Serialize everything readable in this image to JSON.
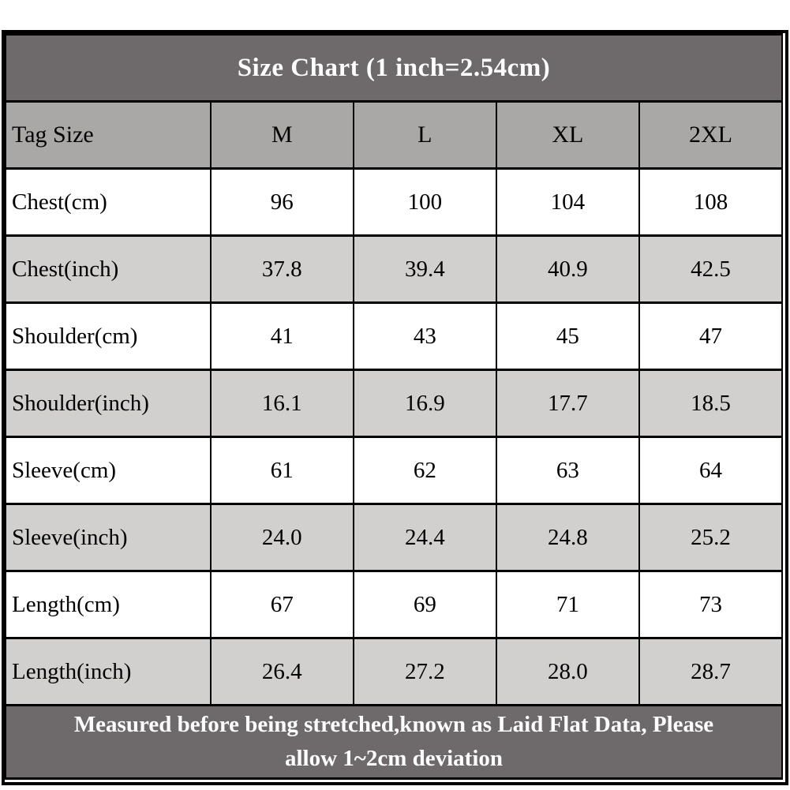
{
  "colors": {
    "header_bg": "#6e6a6b",
    "subheader_bg": "#aaa7a7",
    "band_row_bg": "#d2cfcf",
    "plain_row_bg": "#ffffff",
    "border": "#000000",
    "header_text": "#ffffff",
    "cell_text": "#000000"
  },
  "chart_data": {
    "type": "table",
    "title": "Size Chart (1 inch=2.54cm)",
    "columns": [
      "Tag Size",
      "M",
      "L",
      "XL",
      "2XL"
    ],
    "rows": [
      {
        "label": "Chest(cm)",
        "values": [
          "96",
          "100",
          "104",
          "108"
        ]
      },
      {
        "label": "Chest(inch)",
        "values": [
          "37.8",
          "39.4",
          "40.9",
          "42.5"
        ]
      },
      {
        "label": "Shoulder(cm)",
        "values": [
          "41",
          "43",
          "45",
          "47"
        ]
      },
      {
        "label": "Shoulder(inch)",
        "values": [
          "16.1",
          "16.9",
          "17.7",
          "18.5"
        ]
      },
      {
        "label": "Sleeve(cm)",
        "values": [
          "61",
          "62",
          "63",
          "64"
        ]
      },
      {
        "label": "Sleeve(inch)",
        "values": [
          "24.0",
          "24.4",
          "24.8",
          "25.2"
        ]
      },
      {
        "label": "Length(cm)",
        "values": [
          "67",
          "69",
          "71",
          "73"
        ]
      },
      {
        "label": "Length(inch)",
        "values": [
          "26.4",
          "27.2",
          "28.0",
          "28.7"
        ]
      }
    ],
    "note_lines": [
      "Measured before being stretched,known as Laid Flat Data, Please",
      "allow 1~2cm deviation"
    ]
  }
}
